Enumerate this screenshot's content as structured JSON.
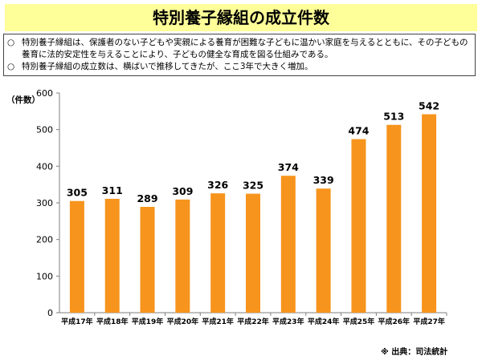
{
  "title": "特別養子縁組の成立件数",
  "bullets": [
    {
      "mark": "○",
      "text": "特別養子縁組は、保護者のない子どもや実親による養育が困難な子どもに温かい家庭を与えるとともに、その子どもの養育に法的安定性を与えることにより、子どもの健全な育成を図る仕組みである。"
    },
    {
      "mark": "○",
      "text": "特別養子縁組の成立数は、横ばいで推移してきたが、ここ3年で大きく増加。"
    }
  ],
  "source": "※ 出典：司法統計",
  "colors": {
    "bar": "#f7941d",
    "banner": "#ffff99",
    "axis": "#7f7f7f"
  },
  "chart_data": {
    "type": "bar",
    "ylabel": "（件数）",
    "ylim": [
      0,
      600
    ],
    "yticks": [
      0,
      100,
      200,
      300,
      400,
      500,
      600
    ],
    "categories": [
      "平成17年",
      "平成18年",
      "平成19年",
      "平成20年",
      "平成21年",
      "平成22年",
      "平成23年",
      "平成24年",
      "平成25年",
      "平成26年",
      "平成27年"
    ],
    "values": [
      305,
      311,
      289,
      309,
      326,
      325,
      374,
      339,
      474,
      513,
      542
    ]
  }
}
